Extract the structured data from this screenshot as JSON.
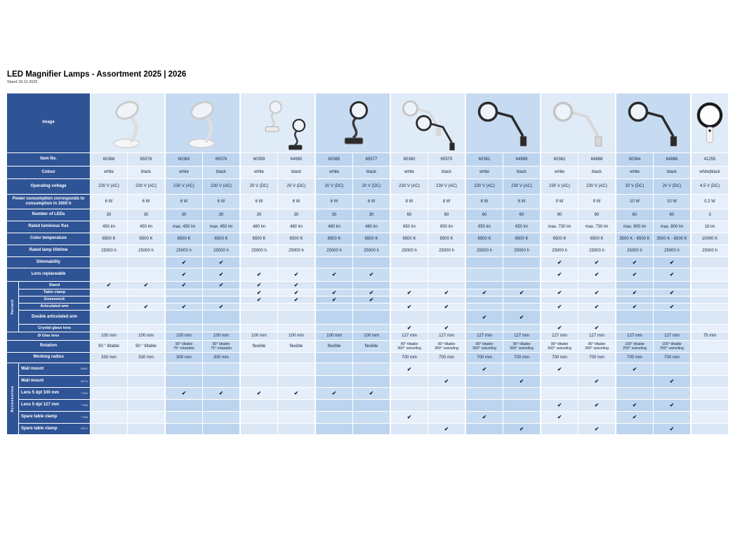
{
  "page": {
    "title": "LED Magnifier Lamps - Assortment 2025 | 2026",
    "subtitle": "Stand 18.12.2025"
  },
  "colors": {
    "header_blue": "#2f5496",
    "group_light": "#dbe7f5",
    "group_light_alt": "#e6effa",
    "group_dark": "#bcd4ee",
    "group_dark_alt": "#c9ddf2",
    "check_color": "#101f3c"
  },
  "table": {
    "image_row_label": "Image",
    "sections": {
      "variant": "Variant",
      "accessories": "Accessories"
    },
    "images": [
      {
        "name": "stand-magnifier-lamp-white",
        "style": "stand",
        "tone": "light"
      },
      {
        "name": "stand-magnifier-lamp-white",
        "style": "stand",
        "tone": "light"
      },
      {
        "name": "gooseneck-magnifier-lamps-white-black",
        "style": "goose",
        "tone": "dual"
      },
      {
        "name": "gooseneck-clamp-magnifier-lamp-black",
        "style": "goose",
        "tone": "dark"
      },
      {
        "name": "articulated-arm-magnifier-lamps-white-black",
        "style": "arm",
        "tone": "dual"
      },
      {
        "name": "articulated-arm-magnifier-lamp-black",
        "style": "arm",
        "tone": "dark"
      },
      {
        "name": "articulated-arm-magnifier-lamp-white",
        "style": "arm",
        "tone": "light"
      },
      {
        "name": "articulated-arm-magnifier-lamp-black-white",
        "style": "arm",
        "tone": "dark"
      },
      {
        "name": "handheld-magnifier-black-white",
        "style": "hand",
        "tone": "dark"
      }
    ],
    "rows": [
      {
        "id": "item-no",
        "label": "Item No.",
        "h": 18,
        "values": [
          "60366",
          "65578",
          "60363",
          "65576",
          "60359",
          "64990",
          "60365",
          "65577",
          "60360",
          "65575",
          "60361",
          "64989",
          "60362",
          "64988",
          "60364",
          "64986",
          "41255"
        ]
      },
      {
        "id": "colour",
        "label": "Colour",
        "h": 17,
        "values": [
          "white",
          "black",
          "white",
          "black",
          "white",
          "black",
          "white",
          "black",
          "white",
          "black",
          "white",
          "black",
          "white",
          "black",
          "white",
          "black",
          "white|black"
        ]
      },
      {
        "id": "operating-voltage",
        "label": "Operating voltage",
        "h": 21,
        "values": [
          "230 V (AC)",
          "230 V (AC)",
          "230 V (AC)",
          "230 V (AC)",
          "20 V (DC)",
          "20 V (DC)",
          "20 V (DC)",
          "20 V (DC)",
          "230 V (AC)",
          "230 V (AC)",
          "230 V (AC)",
          "230 V (AC)",
          "230 V (AC)",
          "230 V (AC)",
          "20 V (DC)",
          "20 V (DC)",
          "4.5 V (DC)"
        ]
      },
      {
        "id": "power-consumption",
        "label": "Power consumption corresponds to consumption in 1000 h",
        "h": 20,
        "values": [
          "6 W",
          "6 W",
          "6 W",
          "6 W",
          "6 W",
          "6 W",
          "6 W",
          "6 W",
          "8 W",
          "8 W",
          "8 W",
          "8 W",
          "9 W",
          "9 W",
          "10 W",
          "10 W",
          "0.2 W"
        ]
      },
      {
        "id": "number-of-leds",
        "label": "Number of LEDs",
        "h": 16,
        "values": [
          "30",
          "30",
          "30",
          "30",
          "30",
          "30",
          "30",
          "30",
          "60",
          "60",
          "60",
          "60",
          "90",
          "90",
          "60",
          "60",
          "3"
        ]
      },
      {
        "id": "rated-luminous-flux",
        "label": "Rated luminous flux",
        "h": 16,
        "values": [
          "450 lm",
          "450 lm",
          "max. 450 lm",
          "max. 450 lm",
          "480 lm",
          "480 lm",
          "480 lm",
          "480 lm",
          "650 lm",
          "650 lm",
          "650 lm",
          "650 lm",
          "max. 730 lm",
          "max. 730 lm",
          "max. 800 lm",
          "max. 800 lm",
          "16 lm"
        ]
      },
      {
        "id": "color-temperature",
        "label": "Color temperature",
        "h": 16,
        "values": [
          "6500 K",
          "6500 K",
          "6500 K",
          "6500 K",
          "6500 K",
          "6500 K",
          "6500 K",
          "6500 K",
          "6500 K",
          "6500 K",
          "6500 K",
          "6500 K",
          "6500 K",
          "6500 K",
          "3500 K - 6500 K",
          "3500 K - 6500 K",
          "10000 K"
        ]
      },
      {
        "id": "rated-lamp-lifetime",
        "label": "Rated lamp lifetime",
        "h": 16,
        "values": [
          "25000 h",
          "25000 h",
          "25000 h",
          "25000 h",
          "25000 h",
          "25000 h",
          "25000 h",
          "25000 h",
          "25000 h",
          "25000 h",
          "25000 h",
          "25000 h",
          "25000 h",
          "25000 h",
          "25000 h",
          "25000 h",
          "25000 h"
        ]
      },
      {
        "id": "dimmability",
        "label": "Dimmability",
        "h": 15,
        "values": [
          "",
          "",
          "✔",
          "✔",
          "",
          "",
          "",
          "",
          "",
          "",
          "",
          "",
          "✔",
          "✔",
          "✔",
          "✔",
          ""
        ]
      },
      {
        "id": "lens-replaceable",
        "label": "Lens replaceable",
        "h": 18,
        "values": [
          "",
          "",
          "✔",
          "✔",
          "✔",
          "✔",
          "✔",
          "✔",
          "",
          "",
          "",
          "",
          "✔",
          "✔",
          "✔",
          "✔",
          ""
        ]
      },
      {
        "id": "variant-stand",
        "label": "Stand",
        "h": 10,
        "section": "variant",
        "values": [
          "✔",
          "✔",
          "✔",
          "✔",
          "✔",
          "✔",
          "",
          "",
          "",
          "",
          "",
          "",
          "",
          "",
          "",
          "",
          ""
        ]
      },
      {
        "id": "variant-table-clamp",
        "label": "Table clamp",
        "h": 9,
        "section": "variant",
        "values": [
          "",
          "",
          "",
          "",
          "✔",
          "✔",
          "✔",
          "✔",
          "✔",
          "✔",
          "✔",
          "✔",
          "✔",
          "✔",
          "✔",
          "✔",
          ""
        ]
      },
      {
        "id": "variant-gooseneck",
        "label": "Gooseneck",
        "h": 9,
        "section": "variant",
        "values": [
          "",
          "",
          "",
          "",
          "✔",
          "✔",
          "✔",
          "✔",
          "",
          "",
          "",
          "",
          "",
          "",
          "",
          "",
          ""
        ]
      },
      {
        "id": "variant-articulated-arm",
        "label": "Articulated arm",
        "h": 9,
        "section": "variant",
        "values": [
          "✔",
          "✔",
          "✔",
          "✔",
          "",
          "",
          "",
          "",
          "✔",
          "✔",
          "",
          "",
          "✔",
          "✔",
          "✔",
          "✔",
          ""
        ]
      },
      {
        "id": "variant-double-articulated-arm",
        "label": "Double articulated arm",
        "h": 19,
        "section": "variant",
        "values": [
          "",
          "",
          "",
          "",
          "",
          "",
          "",
          "",
          "",
          "",
          "✔",
          "✔",
          "",
          "",
          "",
          "",
          ""
        ]
      },
      {
        "id": "variant-crystal-glass-lens",
        "label": "Crystal glass lens",
        "h": 10,
        "section": "variant",
        "values": [
          "",
          "",
          "",
          "",
          "",
          "",
          "",
          "",
          "✔",
          "✔",
          "",
          "",
          "✔",
          "✔",
          "",
          "",
          ""
        ]
      },
      {
        "id": "glass-lens-diameter",
        "label": "Ø Glas lens",
        "h": 11,
        "values": [
          "100 mm",
          "100 mm",
          "100 mm",
          "100 mm",
          "100 mm",
          "100 mm",
          "100 mm",
          "100 mm",
          "127 mm",
          "127 mm",
          "127 mm",
          "127 mm",
          "127 mm",
          "127 mm",
          "127 mm",
          "127 mm",
          "75 mm"
        ]
      },
      {
        "id": "rotation",
        "label": "Rotation",
        "h": 16,
        "values": [
          "90 ° tiltable",
          "90 ° tiltable",
          "90° tiltable\n75° rotatable",
          "90° tiltable\n75° rotatable",
          "flexible",
          "flexible",
          "flexible",
          "flexible",
          "90° tiltable\n360° swiveling",
          "90° tiltable\n360° swiveling",
          "90° tiltable\n360° swiveling",
          "90° tiltable\n360° swiveling",
          "90° tiltable\n360° swiveling",
          "90° tiltable\n360° swiveling",
          "100° tiltable\n250° swiveling",
          "100° tiltable\n250° swiveling",
          ""
        ]
      },
      {
        "id": "working-radius",
        "label": "Working radius",
        "h": 14,
        "values": [
          "330 mm",
          "330 mm",
          "300 mm",
          "300 mm",
          "",
          "",
          "",
          "",
          "700 mm",
          "700 mm",
          "700 mm",
          "700 mm",
          "700 mm",
          "700 mm",
          "700 mm",
          "700 mm",
          ""
        ]
      },
      {
        "id": "acc-wall-mount-1",
        "label": "Wall mount",
        "code": "64991",
        "h": 17,
        "section": "accessories",
        "values": [
          "",
          "",
          "",
          "",
          "",
          "",
          "",
          "",
          "✔",
          "",
          "✔",
          "",
          "✔",
          "",
          "✔",
          "",
          ""
        ]
      },
      {
        "id": "acc-wall-mount-2",
        "label": "Wall mount",
        "code": "65771",
        "h": 16,
        "section": "accessories",
        "values": [
          "",
          "",
          "",
          "",
          "",
          "",
          "",
          "",
          "",
          "✔",
          "",
          "✔",
          "",
          "✔",
          "",
          "✔",
          ""
        ]
      },
      {
        "id": "acc-lens-5dpt-100",
        "label": "Lens 5 dpt 100 mm",
        "code": "77434",
        "h": 16,
        "section": "accessories",
        "values": [
          "",
          "",
          "✔",
          "✔",
          "✔",
          "✔",
          "✔",
          "✔",
          "",
          "",
          "",
          "",
          "",
          "",
          "",
          "",
          ""
        ]
      },
      {
        "id": "acc-lens-5dpt-127",
        "label": "Lens 5 dpt 127 mm",
        "code": "77435",
        "h": 16,
        "section": "accessories",
        "values": [
          "",
          "",
          "",
          "",
          "",
          "",
          "",
          "",
          "",
          "",
          "",
          "",
          "✔",
          "✔",
          "✔",
          "✔",
          ""
        ]
      },
      {
        "id": "acc-spare-table-clamp-1",
        "label": "Spare table clamp",
        "code": "77436",
        "h": 16,
        "section": "accessories",
        "values": [
          "",
          "",
          "",
          "",
          "",
          "",
          "",
          "",
          "✔",
          "",
          "✔",
          "",
          "✔",
          "",
          "✔",
          "",
          ""
        ]
      },
      {
        "id": "acc-spare-table-clamp-2",
        "label": "Spare table clamp",
        "code": "64971",
        "h": 15,
        "section": "accessories",
        "values": [
          "",
          "",
          "",
          "",
          "",
          "",
          "",
          "",
          "",
          "✔",
          "",
          "✔",
          "",
          "✔",
          "",
          "✔",
          ""
        ]
      }
    ]
  }
}
